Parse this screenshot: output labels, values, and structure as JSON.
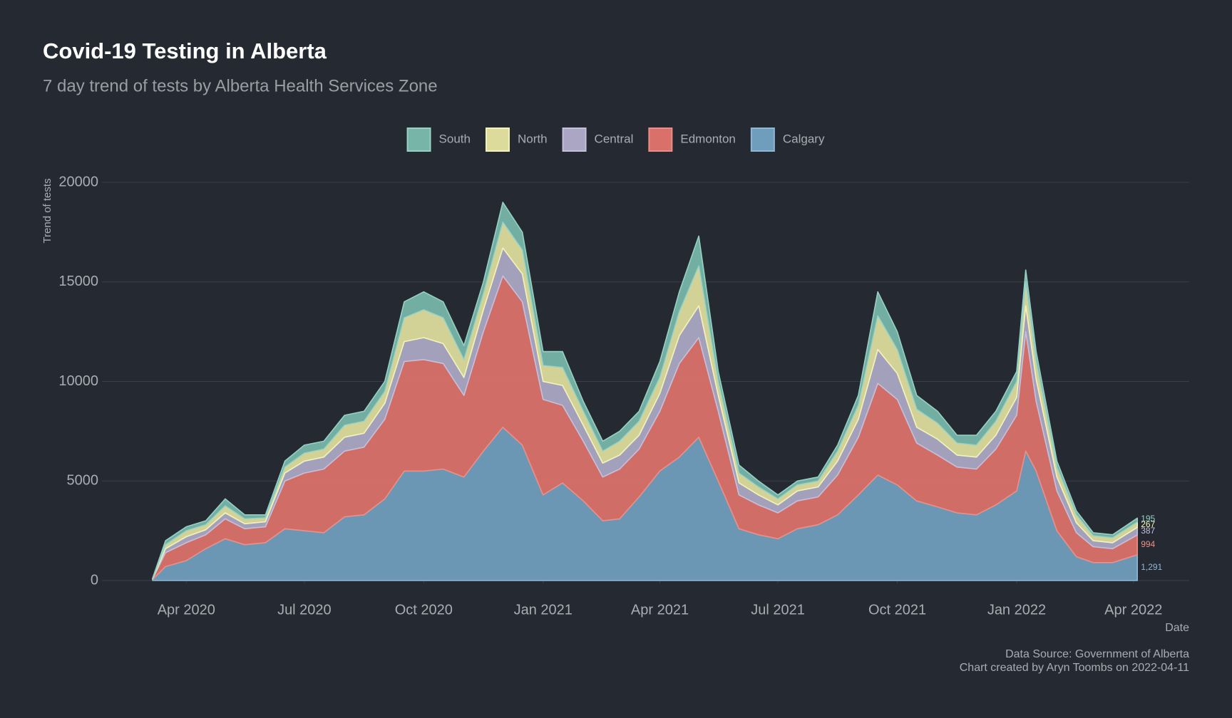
{
  "chart_data": {
    "type": "stacked_area",
    "title": "Covid-19 Testing in Alberta",
    "subtitle": "7 day trend of tests by Alberta Health Services Zone",
    "y_label": "Trend of tests",
    "x_label": "Date",
    "caption": [
      "Data Source: Government of Alberta",
      "Chart created by Aryn Toombs on 2022-04-11"
    ],
    "x": [
      "2020-03-06",
      "2020-03-16",
      "2020-04-01",
      "2020-04-16",
      "2020-05-01",
      "2020-05-16",
      "2020-06-01",
      "2020-06-16",
      "2020-07-01",
      "2020-07-16",
      "2020-08-01",
      "2020-08-16",
      "2020-09-01",
      "2020-09-16",
      "2020-10-01",
      "2020-10-16",
      "2020-11-01",
      "2020-11-16",
      "2020-12-01",
      "2020-12-16",
      "2021-01-01",
      "2021-01-16",
      "2021-02-01",
      "2021-02-16",
      "2021-03-01",
      "2021-03-16",
      "2021-04-01",
      "2021-04-16",
      "2021-05-01",
      "2021-05-16",
      "2021-06-01",
      "2021-06-16",
      "2021-07-01",
      "2021-07-16",
      "2021-08-01",
      "2021-08-16",
      "2021-09-01",
      "2021-09-16",
      "2021-10-01",
      "2021-10-16",
      "2021-11-01",
      "2021-11-16",
      "2021-12-01",
      "2021-12-16",
      "2022-01-01",
      "2022-01-08",
      "2022-01-16",
      "2022-02-01",
      "2022-02-16",
      "2022-03-01",
      "2022-03-16",
      "2022-04-04"
    ],
    "series": [
      {
        "name": "Calgary",
        "color": "#6f9dbc",
        "stroke": "#8fb8d6",
        "values": [
          50,
          700,
          1000,
          1600,
          2100,
          1800,
          1900,
          2600,
          2500,
          2400,
          3200,
          3300,
          4100,
          5500,
          5500,
          5600,
          5200,
          6500,
          7700,
          6800,
          4300,
          4900,
          4000,
          3000,
          3100,
          4200,
          5500,
          6200,
          7200,
          5000,
          2600,
          2300,
          2100,
          2600,
          2800,
          3300,
          4300,
          5300,
          4800,
          4000,
          3700,
          3400,
          3300,
          3800,
          4500,
          6500,
          5500,
          2500,
          1200,
          900,
          900,
          1291
        ],
        "value_labels": [
          null,
          null,
          null,
          null,
          null,
          null,
          null,
          null,
          null,
          null,
          null,
          null,
          null,
          null,
          null,
          null,
          null,
          null,
          null,
          null,
          null,
          null,
          null,
          null,
          null,
          null,
          null,
          null,
          null,
          null,
          null,
          null,
          null,
          null,
          null,
          null,
          null,
          null,
          null,
          null,
          null,
          null,
          null,
          null,
          null,
          null,
          null,
          null,
          null,
          null,
          null,
          "1,291"
        ]
      },
      {
        "name": "Edmonton",
        "color": "#d9716a",
        "stroke": "#ee8d85",
        "values": [
          30,
          700,
          900,
          700,
          1000,
          800,
          800,
          2400,
          2900,
          3200,
          3300,
          3400,
          4000,
          5500,
          5600,
          5300,
          4100,
          6000,
          7600,
          7200,
          4800,
          3900,
          3000,
          2200,
          2500,
          2400,
          3000,
          4700,
          5000,
          3500,
          1700,
          1500,
          1300,
          1400,
          1400,
          2000,
          2900,
          4600,
          4300,
          2900,
          2600,
          2300,
          2300,
          2800,
          3800,
          6000,
          3500,
          2000,
          1200,
          800,
          700,
          994
        ]
      },
      {
        "name": "Central",
        "color": "#aaa6c3",
        "stroke": "#c4c0dc",
        "values": [
          10,
          200,
          300,
          250,
          300,
          250,
          250,
          400,
          600,
          600,
          700,
          700,
          800,
          1000,
          1100,
          1000,
          900,
          1100,
          1400,
          1400,
          900,
          1000,
          800,
          700,
          700,
          700,
          900,
          1400,
          1600,
          800,
          600,
          500,
          400,
          500,
          500,
          700,
          900,
          1700,
          1300,
          800,
          800,
          600,
          600,
          700,
          900,
          1300,
          1100,
          700,
          500,
          300,
          300,
          387
        ]
      },
      {
        "name": "North",
        "color": "#dcdb9c",
        "stroke": "#f3f2b8",
        "values": [
          10,
          200,
          300,
          250,
          350,
          250,
          200,
          300,
          400,
          400,
          600,
          600,
          600,
          1200,
          1400,
          1300,
          900,
          800,
          1300,
          1200,
          800,
          900,
          700,
          600,
          700,
          700,
          800,
          1200,
          2000,
          700,
          500,
          400,
          300,
          300,
          300,
          500,
          700,
          1700,
          1200,
          900,
          800,
          600,
          600,
          700,
          800,
          1200,
          900,
          500,
          400,
          250,
          250,
          267
        ]
      },
      {
        "name": "South",
        "color": "#76b5a8",
        "stroke": "#96d1c4",
        "values": [
          10,
          200,
          200,
          200,
          350,
          200,
          150,
          300,
          400,
          400,
          500,
          500,
          500,
          800,
          900,
          800,
          700,
          600,
          1000,
          900,
          700,
          800,
          500,
          500,
          500,
          500,
          800,
          1000,
          1500,
          500,
          400,
          300,
          200,
          200,
          200,
          300,
          500,
          1200,
          900,
          700,
          600,
          400,
          500,
          500,
          500,
          600,
          500,
          300,
          200,
          150,
          150,
          195
        ]
      }
    ],
    "xlim": [
      "2020-01-27",
      "2022-05-14"
    ],
    "xticks": [
      {
        "value": "2020-04-01",
        "label": "Apr 2020"
      },
      {
        "value": "2020-07-01",
        "label": "Jul 2020"
      },
      {
        "value": "2020-10-01",
        "label": "Oct 2020"
      },
      {
        "value": "2021-01-01",
        "label": "Jan 2021"
      },
      {
        "value": "2021-04-01",
        "label": "Apr 2021"
      },
      {
        "value": "2021-07-01",
        "label": "Jul 2021"
      },
      {
        "value": "2021-10-01",
        "label": "Oct 2021"
      },
      {
        "value": "2022-01-01",
        "label": "Jan 2022"
      },
      {
        "value": "2022-04-01",
        "label": "Apr 2022"
      }
    ],
    "ylim": [
      0,
      20000
    ],
    "yticks": [
      0,
      5000,
      10000,
      15000,
      20000
    ],
    "grid": true,
    "legend": "top"
  }
}
